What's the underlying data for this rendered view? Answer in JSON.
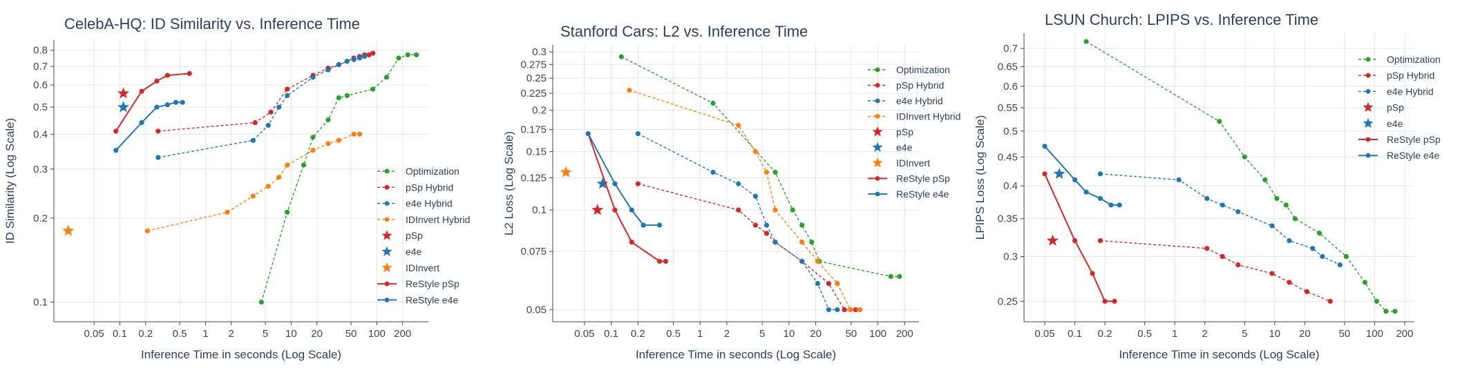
{
  "chart_data": [
    {
      "type": "line",
      "title": "CelebA-HQ: ID Similarity vs. Inference Time",
      "xlabel": "Inference Time in seconds (Log Scale)",
      "ylabel": "ID Similarity (Log Scale)",
      "x_scale": "log",
      "y_scale": "log",
      "xlim": [
        0.017,
        400
      ],
      "ylim": [
        0.085,
        0.87
      ],
      "xticks": [
        0.05,
        0.1,
        0.2,
        0.5,
        1,
        2,
        5,
        10,
        20,
        50,
        100,
        200
      ],
      "xtick_labels": [
        "0.05",
        "0.1",
        "0.2",
        "0.5",
        "1",
        "2",
        "5",
        "10",
        "20",
        "50",
        "100",
        "200"
      ],
      "yticks": [
        0.1,
        0.2,
        0.3,
        0.4,
        0.5,
        0.6,
        0.7,
        0.8
      ],
      "ytick_labels": [
        "0.1",
        "0.2",
        "0.3",
        "0.4",
        "0.5",
        "0.6",
        "0.7",
        "0.8"
      ],
      "grid": true,
      "legend": "bottom-right",
      "series": [
        {
          "name": "Optimization",
          "color": "#2ca02c",
          "style": "dashed-marker",
          "x": [
            4.5,
            9,
            14,
            18,
            27,
            36,
            45,
            90,
            130,
            180,
            230,
            290
          ],
          "y": [
            0.1,
            0.21,
            0.31,
            0.39,
            0.45,
            0.54,
            0.55,
            0.58,
            0.64,
            0.75,
            0.77,
            0.77
          ]
        },
        {
          "name": "pSp Hybrid",
          "color": "#d62728",
          "style": "dashed-marker",
          "x": [
            0.28,
            3.8,
            5.8,
            9,
            18,
            27,
            36,
            45,
            54,
            63,
            72,
            81,
            90
          ],
          "y": [
            0.41,
            0.44,
            0.48,
            0.58,
            0.65,
            0.69,
            0.71,
            0.73,
            0.75,
            0.76,
            0.77,
            0.77,
            0.78
          ]
        },
        {
          "name": "e4e Hybrid",
          "color": "#1f77b4",
          "style": "dashed-marker",
          "x": [
            0.28,
            3.6,
            5.4,
            7.2,
            9,
            18,
            27,
            36,
            45,
            54,
            63,
            72
          ],
          "y": [
            0.33,
            0.38,
            0.43,
            0.5,
            0.55,
            0.64,
            0.68,
            0.71,
            0.73,
            0.74,
            0.75,
            0.76
          ]
        },
        {
          "name": "IDInvert Hybrid",
          "color": "#ff7f0e",
          "style": "dashed-marker",
          "x": [
            0.21,
            1.8,
            3.6,
            5.4,
            7.2,
            9,
            18,
            27,
            36,
            54,
            63
          ],
          "y": [
            0.18,
            0.21,
            0.24,
            0.26,
            0.28,
            0.31,
            0.35,
            0.37,
            0.38,
            0.4,
            0.4
          ]
        },
        {
          "name": "pSp",
          "color": "#d62728",
          "style": "star",
          "x": [
            0.11
          ],
          "y": [
            0.56
          ]
        },
        {
          "name": "e4e",
          "color": "#1f77b4",
          "style": "star",
          "x": [
            0.11
          ],
          "y": [
            0.5
          ]
        },
        {
          "name": "IDInvert",
          "color": "#ff7f0e",
          "style": "star",
          "x": [
            0.025
          ],
          "y": [
            0.18
          ]
        },
        {
          "name": "ReStyle pSp",
          "color": "#d62728",
          "style": "solid-marker",
          "x": [
            0.09,
            0.18,
            0.27,
            0.36,
            0.65
          ],
          "y": [
            0.41,
            0.57,
            0.62,
            0.65,
            0.66
          ]
        },
        {
          "name": "ReStyle e4e",
          "color": "#1f77b4",
          "style": "solid-marker",
          "x": [
            0.09,
            0.18,
            0.27,
            0.36,
            0.45,
            0.54
          ],
          "y": [
            0.35,
            0.44,
            0.5,
            0.51,
            0.52,
            0.52
          ]
        }
      ]
    },
    {
      "type": "line",
      "title": "Stanford Cars: L2 vs. Inference Time",
      "xlabel": "Inference Time in seconds (Log Scale)",
      "ylabel": "L2 Loss (Log Scale)",
      "x_scale": "log",
      "y_scale": "log",
      "xlim": [
        0.022,
        290
      ],
      "ylim": [
        0.046,
        0.315
      ],
      "xticks": [
        0.05,
        0.1,
        0.2,
        0.5,
        1,
        2,
        5,
        10,
        20,
        50,
        100,
        200
      ],
      "xtick_labels": [
        "0.05",
        "0.1",
        "0.2",
        "0.5",
        "1",
        "2",
        "5",
        "10",
        "20",
        "50",
        "100",
        "200"
      ],
      "yticks": [
        0.05,
        0.075,
        0.1,
        0.125,
        0.15,
        0.175,
        0.2,
        0.225,
        0.25,
        0.275,
        0.3
      ],
      "ytick_labels": [
        "0.05",
        "0.075",
        "0.1",
        "0.125",
        "0.15",
        "0.175",
        "0.2",
        "0.225",
        "0.25",
        "0.275",
        "0.3"
      ],
      "grid": true,
      "legend": "top-right",
      "series": [
        {
          "name": "Optimization",
          "color": "#2ca02c",
          "style": "dashed-marker",
          "x": [
            0.13,
            1.4,
            7,
            11,
            14,
            18,
            22,
            140,
            175
          ],
          "y": [
            0.29,
            0.21,
            0.13,
            0.1,
            0.09,
            0.08,
            0.07,
            0.063,
            0.063
          ]
        },
        {
          "name": "pSp Hybrid",
          "color": "#d62728",
          "style": "dashed-marker",
          "x": [
            0.2,
            2.7,
            4.2,
            5.6,
            7,
            14,
            28,
            42,
            56
          ],
          "y": [
            0.12,
            0.1,
            0.09,
            0.085,
            0.08,
            0.07,
            0.06,
            0.05,
            0.05
          ]
        },
        {
          "name": "e4e Hybrid",
          "color": "#1f77b4",
          "style": "dashed-marker",
          "x": [
            0.2,
            1.4,
            2.7,
            4.2,
            5.6,
            7,
            14,
            21,
            28,
            35
          ],
          "y": [
            0.17,
            0.13,
            0.12,
            0.11,
            0.09,
            0.08,
            0.07,
            0.06,
            0.05,
            0.05
          ]
        },
        {
          "name": "IDInvert Hybrid",
          "color": "#ff7f0e",
          "style": "dashed-marker",
          "x": [
            0.16,
            2.7,
            4.2,
            5.6,
            7,
            14,
            21,
            35,
            49,
            63
          ],
          "y": [
            0.23,
            0.18,
            0.15,
            0.13,
            0.1,
            0.08,
            0.07,
            0.06,
            0.05,
            0.05
          ]
        },
        {
          "name": "pSp",
          "color": "#d62728",
          "style": "star",
          "x": [
            0.07
          ],
          "y": [
            0.1
          ]
        },
        {
          "name": "e4e",
          "color": "#1f77b4",
          "style": "star",
          "x": [
            0.08
          ],
          "y": [
            0.12
          ]
        },
        {
          "name": "IDInvert",
          "color": "#ff7f0e",
          "style": "star",
          "x": [
            0.031
          ],
          "y": [
            0.13
          ]
        },
        {
          "name": "ReStyle pSp",
          "color": "#d62728",
          "style": "solid-marker",
          "x": [
            0.055,
            0.11,
            0.17,
            0.35,
            0.41
          ],
          "y": [
            0.17,
            0.1,
            0.08,
            0.07,
            0.07
          ]
        },
        {
          "name": "ReStyle e4e",
          "color": "#1f77b4",
          "style": "solid-marker",
          "x": [
            0.055,
            0.11,
            0.17,
            0.23,
            0.35
          ],
          "y": [
            0.17,
            0.12,
            0.1,
            0.09,
            0.09
          ]
        }
      ]
    },
    {
      "type": "line",
      "title": "LSUN Church: LPIPS vs. Inference Time",
      "xlabel": "Inference Time in seconds (Log Scale)",
      "ylabel": "LPIPS Loss (Log Scale)",
      "x_scale": "log",
      "y_scale": "log",
      "xlim": [
        0.031,
        250
      ],
      "ylim": [
        0.23,
        0.745
      ],
      "xticks": [
        0.05,
        0.1,
        0.2,
        0.5,
        1,
        2,
        5,
        10,
        20,
        50,
        100,
        200
      ],
      "xtick_labels": [
        "0.05",
        "0.1",
        "0.2",
        "0.5",
        "1",
        "2",
        "5",
        "10",
        "20",
        "50",
        "100",
        "200"
      ],
      "yticks": [
        0.25,
        0.3,
        0.35,
        0.4,
        0.45,
        0.5,
        0.55,
        0.6,
        0.65,
        0.7
      ],
      "ytick_labels": [
        "0.25",
        "0.3",
        "0.35",
        "0.4",
        "0.45",
        "0.5",
        "0.55",
        "0.6",
        "0.65",
        "0.7"
      ],
      "grid": true,
      "legend": "top-right",
      "series": [
        {
          "name": "Optimization",
          "color": "#2ca02c",
          "style": "dashed-marker",
          "x": [
            0.13,
            2.8,
            5,
            8,
            10.5,
            13,
            16,
            28,
            52,
            80,
            105,
            130,
            160
          ],
          "y": [
            0.72,
            0.52,
            0.45,
            0.41,
            0.38,
            0.37,
            0.35,
            0.33,
            0.3,
            0.27,
            0.25,
            0.24,
            0.24
          ]
        },
        {
          "name": "pSp Hybrid",
          "color": "#d62728",
          "style": "dashed-marker",
          "x": [
            0.18,
            2.1,
            3,
            4.3,
            9.4,
            14,
            21,
            36
          ],
          "y": [
            0.32,
            0.31,
            0.3,
            0.29,
            0.28,
            0.27,
            0.26,
            0.25
          ]
        },
        {
          "name": "e4e Hybrid",
          "color": "#1f77b4",
          "style": "dashed-marker",
          "x": [
            0.18,
            1.1,
            2.1,
            3,
            4.3,
            9.4,
            14,
            24,
            30,
            45
          ],
          "y": [
            0.42,
            0.41,
            0.38,
            0.37,
            0.36,
            0.34,
            0.32,
            0.31,
            0.3,
            0.29
          ]
        },
        {
          "name": "pSp",
          "color": "#d62728",
          "style": "star",
          "x": [
            0.06
          ],
          "y": [
            0.32
          ]
        },
        {
          "name": "e4e",
          "color": "#1f77b4",
          "style": "star",
          "x": [
            0.07
          ],
          "y": [
            0.42
          ]
        },
        {
          "name": "ReStyle pSp",
          "color": "#d62728",
          "style": "solid-marker",
          "x": [
            0.05,
            0.1,
            0.15,
            0.2,
            0.25
          ],
          "y": [
            0.42,
            0.32,
            0.28,
            0.25,
            0.25
          ]
        },
        {
          "name": "ReStyle e4e",
          "color": "#1f77b4",
          "style": "solid-marker",
          "x": [
            0.05,
            0.1,
            0.13,
            0.18,
            0.23,
            0.28
          ],
          "y": [
            0.47,
            0.41,
            0.39,
            0.38,
            0.37,
            0.37
          ]
        }
      ]
    }
  ]
}
